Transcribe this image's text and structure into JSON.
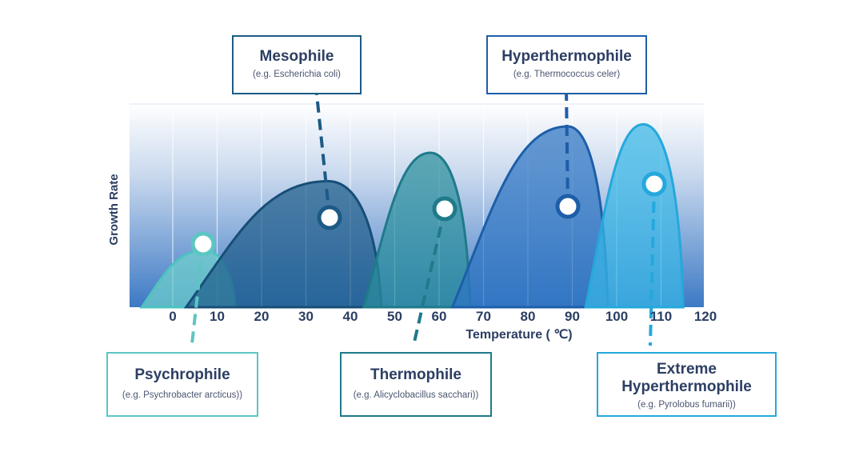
{
  "chart_data": {
    "type": "area",
    "xlabel": "Temperature ( ℃)",
    "ylabel": "Growth Rate",
    "x_ticks": [
      0,
      10,
      20,
      30,
      40,
      50,
      60,
      70,
      80,
      90,
      100,
      110,
      120
    ],
    "xlim": [
      -10,
      120
    ],
    "grid": "vertical",
    "series": [
      {
        "name": "Psychrophile",
        "range": [
          -7,
          14
        ],
        "peak_temp": 7,
        "peak_height": 0.28,
        "color": "#6fd0cc",
        "stroke": "#4cc3bf",
        "marker_temp": 7,
        "marker_height": 0.33
      },
      {
        "name": "Mesophile",
        "range": [
          3,
          47
        ],
        "peak_temp": 35,
        "peak_height": 0.62,
        "color": "#1f5d8a",
        "stroke": "#174e77",
        "marker_temp": 35,
        "marker_height": 0.46
      },
      {
        "name": "Thermophile",
        "range": [
          43,
          67
        ],
        "peak_temp": 58,
        "peak_height": 0.76,
        "color": "#2b8f9d",
        "stroke": "#1f7a8a",
        "marker_temp": 61,
        "marker_height": 0.51
      },
      {
        "name": "Hyperthermophile",
        "range": [
          63,
          98
        ],
        "peak_temp": 89,
        "peak_height": 0.89,
        "color": "#2e74c2",
        "stroke": "#1d5ea8",
        "marker_temp": 89,
        "marker_height": 0.51
      },
      {
        "name": "Extreme Hyperthermophile",
        "range": [
          93,
          115
        ],
        "peak_temp": 106,
        "peak_height": 0.9,
        "color": "#39b7e6",
        "stroke": "#25a8dc",
        "marker_temp": 109,
        "marker_height": 0.63
      }
    ]
  },
  "labels": {
    "mesophile": {
      "name": "Mesophile",
      "example": "(e.g. Escherichia coli)",
      "border": "#1c5a86"
    },
    "hyperthermophile": {
      "name": "Hyperthermophile",
      "example": "(e.g. Thermococcus celer)",
      "border": "#1d5ea8"
    },
    "psychrophile": {
      "name": "Psychrophile",
      "example": "(e.g. Psychrobacter arcticus))",
      "border": "#5cc6c2"
    },
    "thermophile": {
      "name": "Thermophile",
      "example": "(e.g. Alicyclobacillus sacchari))",
      "border": "#1f7a8a"
    },
    "extreme": {
      "name": "Extreme Hyperthermophile",
      "name_line1": "Extreme",
      "name_line2": "Hyperthermophile",
      "example": "(e.g. Pyrolobus fumarii))",
      "border": "#25a8dc"
    }
  }
}
